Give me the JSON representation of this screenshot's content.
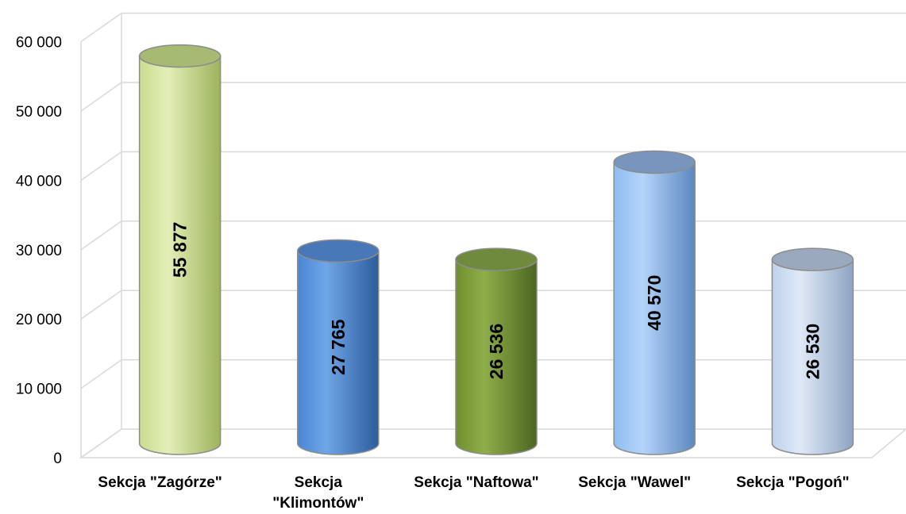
{
  "chart_data": {
    "type": "bar",
    "style": "3d-cylinder",
    "categories": [
      [
        "Sekcja \"Zagórze\""
      ],
      [
        "Sekcja",
        "\"Klimontów\""
      ],
      [
        "Sekcja \"Naftowa\""
      ],
      [
        "Sekcja \"Wawel\""
      ],
      [
        "Sekcja \"Pogoń\""
      ]
    ],
    "values": [
      55877,
      27765,
      26536,
      40570,
      26530
    ],
    "value_labels": [
      "55 877",
      "27 765",
      "26 536",
      "40 570",
      "26 530"
    ],
    "ylim": [
      0,
      60000
    ],
    "yticks": [
      0,
      10000,
      20000,
      30000,
      40000,
      50000,
      60000
    ],
    "ytick_labels": [
      "0",
      "10 000",
      "20 000",
      "30 000",
      "40 000",
      "50 000",
      "60 000"
    ],
    "grid": true,
    "legend": "none",
    "title": "",
    "xlabel": "",
    "ylabel": "",
    "colors": [
      {
        "light": "#e3efb8",
        "mid": "#c9dd8e",
        "dark": "#9db35c",
        "top": "#a6ba72"
      },
      {
        "light": "#6fa6e8",
        "mid": "#4a86d4",
        "dark": "#2c5c9c",
        "top": "#4978b8"
      },
      {
        "light": "#8fae4a",
        "mid": "#6f8f2f",
        "dark": "#4b6620",
        "top": "#6f8a3c"
      },
      {
        "light": "#b4d4fa",
        "mid": "#8fbcf0",
        "dark": "#5d87bf",
        "top": "#7896bd"
      },
      {
        "light": "#dfe9f7",
        "mid": "#bfd2ec",
        "dark": "#8ea4c4",
        "top": "#9aa9bd"
      }
    ]
  }
}
